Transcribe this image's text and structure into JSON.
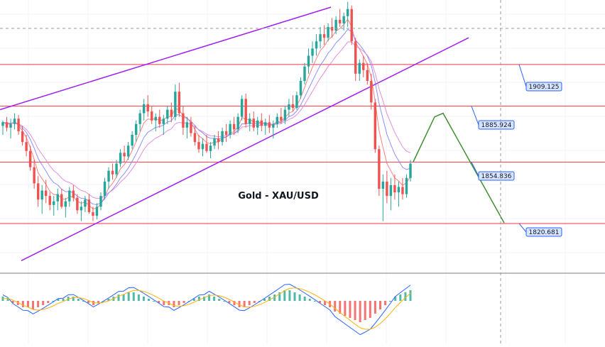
{
  "chart_data": {
    "type": "candlestick",
    "title": "Gold - XAU/USD",
    "price_range": [
      1795,
      1945
    ],
    "levels": [
      {
        "value": 1909.125,
        "label": "1909.125",
        "color": "#f23645"
      },
      {
        "value": 1885.924,
        "label": "1885.924",
        "color": "#f23645"
      },
      {
        "value": 1854.836,
        "label": "1854.836",
        "color": "#f23645"
      },
      {
        "value": 1820.681,
        "label": "1820.681",
        "color": "#f23645"
      }
    ],
    "channel": {
      "color": "#a020f0",
      "upper": {
        "x0": 0,
        "y0": 1884,
        "x1": 466,
        "y1": 1941
      },
      "lower": {
        "x0": 30,
        "y0": 1800,
        "x1": 660,
        "y1": 1924
      }
    },
    "projection": {
      "color": "#3f8f2f",
      "points": [
        [
          582,
          1855
        ],
        [
          612,
          1880
        ],
        [
          624,
          1882
        ],
        [
          710,
          1821
        ]
      ]
    },
    "candles": [
      [
        1875,
        1878,
        1870,
        1877
      ],
      [
        1877,
        1880,
        1872,
        1874
      ],
      [
        1874,
        1879,
        1868,
        1876
      ],
      [
        1876,
        1882,
        1873,
        1879
      ],
      [
        1879,
        1881,
        1870,
        1872
      ],
      [
        1872,
        1875,
        1864,
        1866
      ],
      [
        1866,
        1870,
        1858,
        1861
      ],
      [
        1861,
        1864,
        1850,
        1852
      ],
      [
        1852,
        1856,
        1840,
        1843
      ],
      [
        1843,
        1847,
        1830,
        1834
      ],
      [
        1834,
        1842,
        1826,
        1839
      ],
      [
        1839,
        1845,
        1832,
        1836
      ],
      [
        1836,
        1838,
        1828,
        1831
      ],
      [
        1831,
        1836,
        1825,
        1833
      ],
      [
        1833,
        1840,
        1828,
        1837
      ],
      [
        1837,
        1840,
        1829,
        1830
      ],
      [
        1830,
        1835,
        1824,
        1833
      ],
      [
        1833,
        1841,
        1830,
        1839
      ],
      [
        1839,
        1842,
        1833,
        1835
      ],
      [
        1835,
        1837,
        1826,
        1828
      ],
      [
        1828,
        1833,
        1822,
        1830
      ],
      [
        1830,
        1836,
        1827,
        1834
      ],
      [
        1834,
        1837,
        1826,
        1827
      ],
      [
        1827,
        1830,
        1822,
        1825
      ],
      [
        1825,
        1832,
        1823,
        1830
      ],
      [
        1830,
        1838,
        1828,
        1836
      ],
      [
        1836,
        1846,
        1834,
        1844
      ],
      [
        1844,
        1852,
        1840,
        1850
      ],
      [
        1850,
        1854,
        1845,
        1848
      ],
      [
        1848,
        1856,
        1846,
        1854
      ],
      [
        1854,
        1862,
        1852,
        1860
      ],
      [
        1860,
        1864,
        1855,
        1858
      ],
      [
        1858,
        1866,
        1856,
        1864
      ],
      [
        1864,
        1872,
        1862,
        1870
      ],
      [
        1870,
        1878,
        1866,
        1876
      ],
      [
        1876,
        1884,
        1872,
        1882
      ],
      [
        1882,
        1890,
        1878,
        1887
      ],
      [
        1887,
        1892,
        1880,
        1883
      ],
      [
        1883,
        1886,
        1876,
        1878
      ],
      [
        1878,
        1882,
        1872,
        1880
      ],
      [
        1880,
        1884,
        1874,
        1876
      ],
      [
        1876,
        1881,
        1870,
        1879
      ],
      [
        1879,
        1886,
        1876,
        1884
      ],
      [
        1884,
        1888,
        1877,
        1880
      ],
      [
        1880,
        1898,
        1878,
        1894
      ],
      [
        1894,
        1899,
        1880,
        1882
      ],
      [
        1882,
        1886,
        1870,
        1874
      ],
      [
        1874,
        1880,
        1868,
        1877
      ],
      [
        1877,
        1880,
        1869,
        1871
      ],
      [
        1871,
        1875,
        1864,
        1866
      ],
      [
        1866,
        1870,
        1860,
        1862
      ],
      [
        1862,
        1868,
        1858,
        1865
      ],
      [
        1865,
        1870,
        1860,
        1861
      ],
      [
        1861,
        1866,
        1857,
        1864
      ],
      [
        1864,
        1870,
        1862,
        1868
      ],
      [
        1868,
        1872,
        1862,
        1866
      ],
      [
        1866,
        1874,
        1864,
        1872
      ],
      [
        1872,
        1876,
        1866,
        1870
      ],
      [
        1870,
        1878,
        1868,
        1876
      ],
      [
        1876,
        1880,
        1870,
        1873
      ],
      [
        1873,
        1882,
        1871,
        1880
      ],
      [
        1880,
        1892,
        1878,
        1890
      ],
      [
        1890,
        1893,
        1874,
        1876
      ],
      [
        1876,
        1882,
        1872,
        1879
      ],
      [
        1879,
        1883,
        1872,
        1874
      ],
      [
        1874,
        1880,
        1870,
        1878
      ],
      [
        1878,
        1882,
        1872,
        1875
      ],
      [
        1875,
        1879,
        1870,
        1877
      ],
      [
        1877,
        1881,
        1871,
        1874
      ],
      [
        1874,
        1878,
        1868,
        1876
      ],
      [
        1876,
        1882,
        1874,
        1880
      ],
      [
        1880,
        1885,
        1876,
        1878
      ],
      [
        1878,
        1886,
        1876,
        1884
      ],
      [
        1884,
        1890,
        1880,
        1887
      ],
      [
        1887,
        1892,
        1883,
        1885
      ],
      [
        1885,
        1894,
        1884,
        1892
      ],
      [
        1892,
        1902,
        1890,
        1900
      ],
      [
        1900,
        1910,
        1898,
        1908
      ],
      [
        1908,
        1918,
        1904,
        1914
      ],
      [
        1914,
        1922,
        1910,
        1918
      ],
      [
        1918,
        1926,
        1914,
        1922
      ],
      [
        1922,
        1930,
        1918,
        1926
      ],
      [
        1926,
        1931,
        1920,
        1924
      ],
      [
        1924,
        1932,
        1922,
        1930
      ],
      [
        1930,
        1935,
        1924,
        1928
      ],
      [
        1928,
        1936,
        1926,
        1934
      ],
      [
        1934,
        1940,
        1930,
        1932
      ],
      [
        1932,
        1938,
        1928,
        1936
      ],
      [
        1936,
        1944,
        1930,
        1940
      ],
      [
        1940,
        1942,
        1920,
        1922
      ],
      [
        1922,
        1924,
        1900,
        1904
      ],
      [
        1904,
        1912,
        1900,
        1910
      ],
      [
        1910,
        1914,
        1902,
        1906
      ],
      [
        1906,
        1910,
        1898,
        1900
      ],
      [
        1900,
        1904,
        1884,
        1888
      ],
      [
        1888,
        1890,
        1860,
        1862
      ],
      [
        1862,
        1864,
        1836,
        1840
      ],
      [
        1840,
        1848,
        1822,
        1844
      ],
      [
        1844,
        1850,
        1832,
        1836
      ],
      [
        1836,
        1846,
        1828,
        1842
      ],
      [
        1842,
        1848,
        1834,
        1838
      ],
      [
        1838,
        1844,
        1830,
        1841
      ],
      [
        1841,
        1846,
        1834,
        1837
      ],
      [
        1837,
        1848,
        1835,
        1846
      ],
      [
        1846,
        1856,
        1844,
        1854
      ]
    ],
    "indicator": {
      "type": "macd",
      "histogram": [
        2,
        1,
        -1,
        -2,
        -3,
        -3,
        -4,
        -3,
        -2,
        -1,
        0,
        1,
        1,
        2,
        2,
        1,
        0,
        -1,
        -2,
        -1,
        0,
        1,
        2,
        3,
        3,
        4,
        4,
        3,
        2,
        1,
        0,
        -1,
        -2,
        -2,
        -3,
        -2,
        -1,
        0,
        1,
        2,
        2,
        3,
        2,
        1,
        0,
        -1,
        -2,
        -3,
        -3,
        -2,
        -1,
        0,
        1,
        2,
        3,
        4,
        5,
        5,
        4,
        3,
        2,
        1,
        0,
        -1,
        -2,
        -3,
        -5,
        -6,
        -7,
        -8,
        -9,
        -10,
        -9,
        -8,
        -6,
        -4,
        -2,
        0,
        2,
        3,
        4,
        5
      ]
    }
  }
}
